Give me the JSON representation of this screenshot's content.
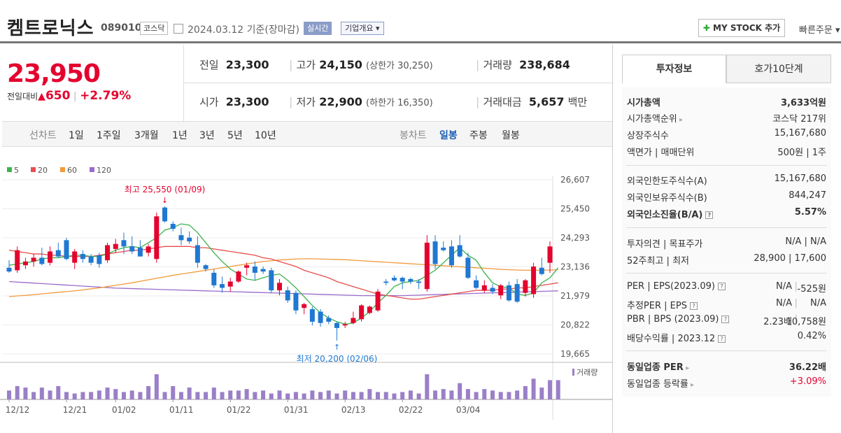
{
  "header": {
    "name": "켐트로닉스",
    "code": "089010",
    "market": "코스닥",
    "date": "2024.03.12",
    "basis": "기준(장마감)",
    "realtime": "실시간",
    "company_info": "기업개요",
    "mystock": "MY STOCK 추가",
    "quick_order": "빠른주문"
  },
  "price": {
    "current": "23,950",
    "diff_label": "전일대비",
    "diff": "650",
    "rate": "+2.79%"
  },
  "summary": {
    "prev_label": "전일",
    "prev": "23,300",
    "high_label": "고가",
    "high": "24,150",
    "upper": "(상한가 30,250)",
    "volume_label": "거래량",
    "volume": "238,684",
    "open_label": "시가",
    "open": "23,300",
    "low_label": "저가",
    "low": "22,900",
    "lower": "(하한가 16,350)",
    "amount_label": "거래대금",
    "amount": "5,657",
    "amount_unit": "백만"
  },
  "range": {
    "line_label": "선차트",
    "line_items": [
      "1일",
      "1주일",
      "3개월",
      "1년",
      "3년",
      "5년",
      "10년"
    ],
    "candle_label": "봉차트",
    "candle_items": [
      "일봉",
      "주봉",
      "월봉"
    ]
  },
  "legend": [
    {
      "label": "5",
      "color": "#3eb24d"
    },
    {
      "label": "20",
      "color": "#e84e4e"
    },
    {
      "label": "60",
      "color": "#f09a3a"
    },
    {
      "label": "120",
      "color": "#9b6bcb"
    }
  ],
  "chart_data": {
    "type": "candlestick",
    "yticks": [
      "26,607",
      "25,450",
      "24,293",
      "23,136",
      "21,979",
      "20,822",
      "19,665"
    ],
    "ylim": [
      19665,
      26607
    ],
    "xticks": [
      "12/12",
      "12/21",
      "01/02",
      "01/11",
      "01/22",
      "01/31",
      "02/13",
      "02/22",
      "03/04"
    ],
    "high_annotation": "최고 25,550 (01/09)",
    "low_annotation": "최저 20,200 (02/06)",
    "volume_label": "거래량",
    "colors": {
      "up": "#e4032e",
      "down": "#1f78d1",
      "volume": "#9b7fc8"
    },
    "candles": [
      {
        "o": 23100,
        "h": 23400,
        "l": 22900,
        "c": 22950
      },
      {
        "o": 23000,
        "h": 23950,
        "l": 22900,
        "c": 23800
      },
      {
        "o": 23200,
        "h": 23500,
        "l": 23050,
        "c": 23350
      },
      {
        "o": 23350,
        "h": 23650,
        "l": 23150,
        "c": 23500
      },
      {
        "o": 23500,
        "h": 23900,
        "l": 23200,
        "c": 23250
      },
      {
        "o": 23300,
        "h": 23950,
        "l": 23200,
        "c": 23750
      },
      {
        "o": 23800,
        "h": 24100,
        "l": 23500,
        "c": 23550
      },
      {
        "o": 24200,
        "h": 24300,
        "l": 23400,
        "c": 23450
      },
      {
        "o": 23300,
        "h": 23850,
        "l": 23050,
        "c": 23750
      },
      {
        "o": 23650,
        "h": 23800,
        "l": 23300,
        "c": 23450
      },
      {
        "o": 23550,
        "h": 23650,
        "l": 23200,
        "c": 23300
      },
      {
        "o": 23600,
        "h": 23700,
        "l": 23100,
        "c": 23250
      },
      {
        "o": 23400,
        "h": 24100,
        "l": 23300,
        "c": 24000
      },
      {
        "o": 23850,
        "h": 24250,
        "l": 23700,
        "c": 24050
      },
      {
        "o": 24200,
        "h": 24500,
        "l": 23650,
        "c": 23950
      },
      {
        "o": 23950,
        "h": 24350,
        "l": 23650,
        "c": 23750
      },
      {
        "o": 23900,
        "h": 24200,
        "l": 23550,
        "c": 23550
      },
      {
        "o": 23700,
        "h": 24050,
        "l": 23550,
        "c": 23950
      },
      {
        "o": 23450,
        "h": 25300,
        "l": 23300,
        "c": 25150
      },
      {
        "o": 25500,
        "h": 25550,
        "l": 24900,
        "c": 24950
      },
      {
        "o": 24850,
        "h": 24950,
        "l": 24550,
        "c": 24650
      },
      {
        "o": 24400,
        "h": 24700,
        "l": 24000,
        "c": 24200
      },
      {
        "o": 24300,
        "h": 24550,
        "l": 24050,
        "c": 24150
      },
      {
        "o": 24000,
        "h": 24350,
        "l": 23100,
        "c": 23300
      },
      {
        "o": 23200,
        "h": 23250,
        "l": 22950,
        "c": 23050
      },
      {
        "o": 22900,
        "h": 23050,
        "l": 22300,
        "c": 22400
      },
      {
        "o": 22450,
        "h": 22750,
        "l": 22100,
        "c": 22300
      },
      {
        "o": 22350,
        "h": 22700,
        "l": 22150,
        "c": 22550
      },
      {
        "o": 22550,
        "h": 23000,
        "l": 22500,
        "c": 22950
      },
      {
        "o": 23100,
        "h": 23300,
        "l": 22800,
        "c": 23200
      },
      {
        "o": 23150,
        "h": 23350,
        "l": 22600,
        "c": 22900
      },
      {
        "o": 23050,
        "h": 23150,
        "l": 22850,
        "c": 22950
      },
      {
        "o": 23000,
        "h": 23100,
        "l": 22100,
        "c": 22200
      },
      {
        "o": 22200,
        "h": 22650,
        "l": 22000,
        "c": 22500
      },
      {
        "o": 22200,
        "h": 22350,
        "l": 21700,
        "c": 21800
      },
      {
        "o": 22100,
        "h": 22200,
        "l": 21250,
        "c": 21400
      },
      {
        "o": 21500,
        "h": 21700,
        "l": 21250,
        "c": 21650
      },
      {
        "o": 21450,
        "h": 21550,
        "l": 20800,
        "c": 20950
      },
      {
        "o": 21350,
        "h": 21450,
        "l": 20750,
        "c": 20900
      },
      {
        "o": 21100,
        "h": 21200,
        "l": 20850,
        "c": 20950
      },
      {
        "o": 20900,
        "h": 20950,
        "l": 20200,
        "c": 20700
      },
      {
        "o": 20800,
        "h": 20950,
        "l": 20700,
        "c": 20850
      },
      {
        "o": 20900,
        "h": 21350,
        "l": 20850,
        "c": 21100
      },
      {
        "o": 21050,
        "h": 21650,
        "l": 20950,
        "c": 21600
      },
      {
        "o": 21300,
        "h": 21600,
        "l": 21250,
        "c": 21550
      },
      {
        "o": 21400,
        "h": 22250,
        "l": 21350,
        "c": 22150
      },
      {
        "o": 22550,
        "h": 22650,
        "l": 22400,
        "c": 22500
      },
      {
        "o": 22700,
        "h": 22800,
        "l": 22550,
        "c": 22600
      },
      {
        "o": 22700,
        "h": 22750,
        "l": 22250,
        "c": 22550
      },
      {
        "o": 22650,
        "h": 22700,
        "l": 22450,
        "c": 22550
      },
      {
        "o": 22550,
        "h": 22650,
        "l": 22250,
        "c": 22500
      },
      {
        "o": 22250,
        "h": 24400,
        "l": 22150,
        "c": 24100
      },
      {
        "o": 24150,
        "h": 24400,
        "l": 23050,
        "c": 23250
      },
      {
        "o": 23900,
        "h": 24150,
        "l": 23750,
        "c": 23800
      },
      {
        "o": 23950,
        "h": 24200,
        "l": 23100,
        "c": 23200
      },
      {
        "o": 24000,
        "h": 24400,
        "l": 23500,
        "c": 23550
      },
      {
        "o": 23500,
        "h": 23700,
        "l": 22650,
        "c": 22700
      },
      {
        "o": 22600,
        "h": 22800,
        "l": 22250,
        "c": 22300
      },
      {
        "o": 22200,
        "h": 22600,
        "l": 22100,
        "c": 22400
      },
      {
        "o": 22300,
        "h": 22450,
        "l": 22050,
        "c": 22150
      },
      {
        "o": 22000,
        "h": 22450,
        "l": 21850,
        "c": 22400
      },
      {
        "o": 22400,
        "h": 22550,
        "l": 21750,
        "c": 21800
      },
      {
        "o": 22450,
        "h": 22650,
        "l": 21700,
        "c": 21750
      },
      {
        "o": 22100,
        "h": 22650,
        "l": 21950,
        "c": 22600
      },
      {
        "o": 22050,
        "h": 23300,
        "l": 21900,
        "c": 23150
      },
      {
        "o": 23100,
        "h": 23500,
        "l": 22800,
        "c": 22850
      },
      {
        "o": 23300,
        "h": 24150,
        "l": 22900,
        "c": 23950
      }
    ],
    "ma5": [
      23200,
      23250,
      23300,
      23350,
      23450,
      23500,
      23500,
      23550,
      23600,
      23600,
      23550,
      23550,
      23650,
      23800,
      23900,
      23950,
      23900,
      24100,
      24300,
      24600,
      24700,
      24850,
      24800,
      24500,
      24100,
      23700,
      23350,
      23050,
      22850,
      22650,
      22600,
      22700,
      22800,
      22850,
      22600,
      22300,
      21950,
      21600,
      21300,
      21100,
      20950,
      20850,
      20900,
      21100,
      21350,
      21700,
      22000,
      22350,
      22500,
      22550,
      22600,
      22800,
      23000,
      23300,
      23600,
      23900,
      23600,
      23400,
      22900,
      22500,
      22350,
      22300,
      22050,
      22000,
      22100,
      22500,
      22700,
      23100
    ],
    "ma20": [
      23800,
      23750,
      23700,
      23650,
      23650,
      23600,
      23600,
      23550,
      23550,
      23550,
      23550,
      23600,
      23650,
      23700,
      23750,
      23800,
      23800,
      23850,
      23900,
      23950,
      23950,
      23950,
      23950,
      23900,
      23900,
      23850,
      23800,
      23750,
      23700,
      23650,
      23600,
      23500,
      23450,
      23350,
      23250,
      23150,
      23000,
      22900,
      22800,
      22700,
      22550,
      22450,
      22350,
      22250,
      22150,
      22050,
      22000,
      21950,
      21900,
      21850,
      21850,
      21900,
      21950,
      22000,
      22050,
      22100,
      22150,
      22200,
      22200,
      22200,
      22250,
      22250,
      22300,
      22300,
      22350,
      22400,
      22450,
      22500
    ],
    "ma60": [
      21950,
      21980,
      22000,
      22030,
      22060,
      22090,
      22120,
      22150,
      22180,
      22220,
      22260,
      22300,
      22350,
      22400,
      22450,
      22500,
      22560,
      22620,
      22680,
      22740,
      22800,
      22850,
      22900,
      22950,
      23000,
      23050,
      23100,
      23150,
      23200,
      23250,
      23300,
      23350,
      23380,
      23410,
      23430,
      23450,
      23460,
      23460,
      23450,
      23440,
      23430,
      23420,
      23400,
      23380,
      23360,
      23340,
      23320,
      23300,
      23280,
      23260,
      23240,
      23220,
      23200,
      23180,
      23160,
      23140,
      23120,
      23100,
      23080,
      23060,
      23040,
      23020,
      23010,
      23000,
      23000,
      23000,
      23010,
      23020
    ],
    "ma120": [
      22550,
      22530,
      22510,
      22490,
      22470,
      22450,
      22430,
      22410,
      22390,
      22370,
      22350,
      22330,
      22310,
      22290,
      22280,
      22270,
      22260,
      22250,
      22240,
      22230,
      22220,
      22210,
      22200,
      22190,
      22180,
      22170,
      22160,
      22150,
      22140,
      22130,
      22120,
      22110,
      22100,
      22090,
      22080,
      22070,
      22060,
      22050,
      22040,
      22030,
      22020,
      22010,
      22000,
      21990,
      21990,
      21990,
      21990,
      21990,
      21990,
      22000,
      22010,
      22020,
      22030,
      22040,
      22050,
      22060,
      22070,
      22080,
      22090,
      22100,
      22110,
      22120,
      22130,
      22140,
      22150,
      22160,
      22170,
      22180
    ],
    "volumes": [
      6,
      9,
      8,
      5,
      8,
      6,
      9,
      5,
      4,
      5,
      5,
      6,
      8,
      7,
      5,
      6,
      5,
      9,
      17,
      5,
      9,
      5,
      8,
      5,
      5,
      8,
      5,
      6,
      6,
      7,
      5,
      6,
      4,
      6,
      4,
      5,
      4,
      6,
      5,
      6,
      4,
      6,
      5,
      5,
      7,
      5,
      5,
      4,
      5,
      6,
      4,
      17,
      6,
      7,
      6,
      11,
      7,
      5,
      7,
      6,
      5,
      5,
      6,
      9,
      14,
      8,
      13,
      13
    ]
  },
  "side": {
    "tab1": "투자정보",
    "tab2": "호가10단계",
    "r1": {
      "l": "시가총액",
      "v": "3,633억원"
    },
    "r2": {
      "l": "시가총액순위",
      "v": "코스닥 217위"
    },
    "r3": {
      "l": "상장주식수",
      "v": "15,167,680"
    },
    "r4": {
      "l": "액면가 | 매매단위",
      "v": "500원 | 1주"
    },
    "r5": {
      "l": "외국인한도주식수(A)",
      "v": "15,167,680"
    },
    "r6": {
      "l": "외국인보유주식수(B)",
      "v": "844,247"
    },
    "r7": {
      "l": "외국인소진율(B/A)",
      "v": "5.57%"
    },
    "r8": {
      "l": "투자의견 | 목표주가",
      "v": "N/A | N/A"
    },
    "r9": {
      "l": "52주최고 | 최저",
      "v": "28,900 | 17,600"
    },
    "r10": {
      "l": "PER | EPS(2023.09)",
      "v1": "N/A",
      "v2": "-525원"
    },
    "r11": {
      "l": "추정PER | EPS",
      "v1": "N/A",
      "v2": "N/A"
    },
    "r12": {
      "l": "PBR | BPS (2023.09)",
      "v1": "2.23배",
      "v2": "10,758원"
    },
    "r13": {
      "l": "배당수익률 | 2023.12",
      "v": "0.42%"
    },
    "r14": {
      "l": "동일업종 PER",
      "v": "36.22배"
    },
    "r15": {
      "l": "동일업종 등락률",
      "v": "+3.09%"
    }
  }
}
